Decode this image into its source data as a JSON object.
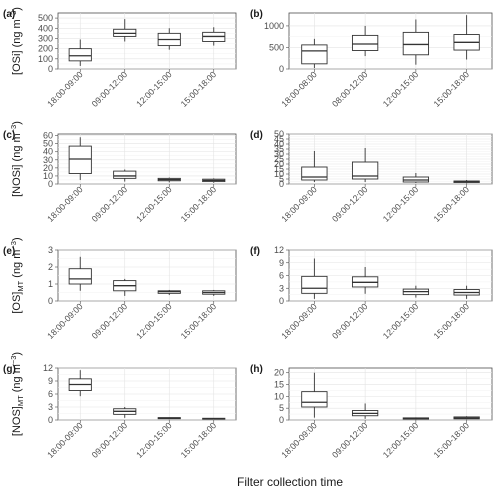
{
  "figure": {
    "xlabel": "Filter collection time"
  },
  "chart_data": [
    {
      "type": "box",
      "panel": "(a)",
      "ylabel_main": "[OSi]",
      "ylabel_sub": "",
      "ylabel_unit": "(ng m",
      "ylabel_exp": "−3",
      "ylim": [
        0,
        550
      ],
      "yticks": [
        0,
        100,
        200,
        300,
        400,
        500
      ],
      "grid": true,
      "categories": [
        "18:00-09:00",
        "09:00-12:00",
        "12:00-15:00",
        "15:00-18:00"
      ],
      "boxes": [
        {
          "min": 30,
          "q1": 80,
          "median": 130,
          "q3": 200,
          "max": 290
        },
        {
          "min": 270,
          "q1": 320,
          "median": 350,
          "q3": 390,
          "max": 490
        },
        {
          "min": 190,
          "q1": 230,
          "median": 290,
          "q3": 350,
          "max": 400
        },
        {
          "min": 230,
          "q1": 270,
          "median": 320,
          "q3": 360,
          "max": 410
        }
      ]
    },
    {
      "type": "box",
      "panel": "(b)",
      "ylabel_main": "",
      "ylabel_sub": "",
      "ylabel_unit": "",
      "ylabel_exp": "",
      "ylim": [
        0,
        1300
      ],
      "yticks": [
        0,
        500,
        1000
      ],
      "grid": true,
      "categories": [
        "18:00-08:00",
        "08:00-12:00",
        "12:00-15:00",
        "15:00-18:00"
      ],
      "boxes": [
        {
          "min": 20,
          "q1": 120,
          "median": 420,
          "q3": 560,
          "max": 700
        },
        {
          "min": 300,
          "q1": 430,
          "median": 580,
          "q3": 780,
          "max": 1000
        },
        {
          "min": 100,
          "q1": 330,
          "median": 570,
          "q3": 850,
          "max": 1150
        },
        {
          "min": 220,
          "q1": 440,
          "median": 620,
          "q3": 800,
          "max": 1250
        }
      ]
    },
    {
      "type": "box",
      "panel": "(c)",
      "ylabel_main": "[NOSi]",
      "ylabel_sub": "",
      "ylabel_unit": "(ng m",
      "ylabel_exp": "−3",
      "ylim": [
        0,
        62
      ],
      "yticks": [
        0,
        10,
        20,
        30,
        40,
        50,
        60
      ],
      "grid": true,
      "categories": [
        "18:00-09:00",
        "09:00-12:00",
        "12:00-15:00",
        "15:00-18:00"
      ],
      "boxes": [
        {
          "min": 5,
          "q1": 13,
          "median": 31,
          "q3": 47,
          "max": 58
        },
        {
          "min": 3,
          "q1": 7,
          "median": 10,
          "q3": 16,
          "max": 18
        },
        {
          "min": 2,
          "q1": 4,
          "median": 5.5,
          "q3": 7,
          "max": 8
        },
        {
          "min": 1.5,
          "q1": 3,
          "median": 4.5,
          "q3": 6,
          "max": 7
        }
      ]
    },
    {
      "type": "box",
      "panel": "(d)",
      "ylabel_main": "",
      "ylabel_sub": "",
      "ylabel_unit": "",
      "ylabel_exp": "",
      "ylim": [
        0,
        50
      ],
      "yticks": [
        0,
        5,
        10,
        15,
        20,
        25,
        30,
        35,
        40,
        45,
        50
      ],
      "grid": true,
      "categories": [
        "18:00-09:00",
        "09:00-12:00",
        "12:00-15:00",
        "15:00-18:00"
      ],
      "boxes": [
        {
          "min": 2,
          "q1": 4,
          "median": 7,
          "q3": 17,
          "max": 33
        },
        {
          "min": 2,
          "q1": 5,
          "median": 8,
          "q3": 22,
          "max": 36
        },
        {
          "min": 1,
          "q1": 2,
          "median": 4,
          "q3": 7,
          "max": 11
        },
        {
          "min": 0.5,
          "q1": 1.5,
          "median": 2.5,
          "q3": 3,
          "max": 4
        }
      ]
    },
    {
      "type": "box",
      "panel": "(e)",
      "ylabel_main": "[OS]",
      "ylabel_sub": "MT",
      "ylabel_unit": "(ng m",
      "ylabel_exp": "−3",
      "ylim": [
        0,
        3
      ],
      "yticks": [
        0,
        1,
        2,
        3
      ],
      "grid": true,
      "categories": [
        "18:00-09:00",
        "09:00-12:00",
        "12:00-15:00",
        "15:00-18:00"
      ],
      "boxes": [
        {
          "min": 0.6,
          "q1": 1.0,
          "median": 1.3,
          "q3": 1.9,
          "max": 2.6
        },
        {
          "min": 0.3,
          "q1": 0.6,
          "median": 0.9,
          "q3": 1.2,
          "max": 1.3
        },
        {
          "min": 0.35,
          "q1": 0.45,
          "median": 0.55,
          "q3": 0.6,
          "max": 0.65
        },
        {
          "min": 0.3,
          "q1": 0.4,
          "median": 0.5,
          "q3": 0.6,
          "max": 0.65
        }
      ]
    },
    {
      "type": "box",
      "panel": "(f)",
      "ylabel_main": "",
      "ylabel_sub": "",
      "ylabel_unit": "",
      "ylabel_exp": "",
      "ylim": [
        0,
        12
      ],
      "yticks": [
        0,
        3,
        6,
        9,
        12
      ],
      "grid": true,
      "categories": [
        "18:00-09:00",
        "09:00-12:00",
        "12:00-15:00",
        "15:00-18:00"
      ],
      "boxes": [
        {
          "min": 0.5,
          "q1": 1.8,
          "median": 3.0,
          "q3": 5.8,
          "max": 10.0
        },
        {
          "min": 1.7,
          "q1": 3.3,
          "median": 4.4,
          "q3": 5.7,
          "max": 8.0
        },
        {
          "min": 0.8,
          "q1": 1.5,
          "median": 2.2,
          "q3": 2.8,
          "max": 3.6
        },
        {
          "min": 0.5,
          "q1": 1.4,
          "median": 2.0,
          "q3": 2.7,
          "max": 3.6
        }
      ]
    },
    {
      "type": "box",
      "panel": "(g)",
      "ylabel_main": "[NOS]",
      "ylabel_sub": "MT",
      "ylabel_unit": "(ng m",
      "ylabel_exp": "−3",
      "ylim": [
        0,
        12
      ],
      "yticks": [
        0,
        3,
        6,
        9,
        12
      ],
      "grid": true,
      "categories": [
        "18:00-09:00",
        "09:00-12:00",
        "12:00-15:00",
        "15:00-18:00"
      ],
      "boxes": [
        {
          "min": 5.5,
          "q1": 6.8,
          "median": 8.2,
          "q3": 9.5,
          "max": 11.5
        },
        {
          "min": 0.5,
          "q1": 1.3,
          "median": 2.0,
          "q3": 2.6,
          "max": 3.0
        },
        {
          "min": 0.15,
          "q1": 0.3,
          "median": 0.45,
          "q3": 0.55,
          "max": 0.6
        },
        {
          "min": 0.1,
          "q1": 0.2,
          "median": 0.3,
          "q3": 0.4,
          "max": 0.45
        }
      ]
    },
    {
      "type": "box",
      "panel": "(h)",
      "ylabel_main": "",
      "ylabel_sub": "",
      "ylabel_unit": "",
      "ylabel_exp": "",
      "ylim": [
        0,
        22
      ],
      "yticks": [
        0,
        5,
        10,
        15,
        20
      ],
      "grid": true,
      "categories": [
        "18:00-09:00",
        "09:00-12:00",
        "12:00-15:00",
        "15:00-18:00"
      ],
      "boxes": [
        {
          "min": 1.0,
          "q1": 5.5,
          "median": 7.5,
          "q3": 12.0,
          "max": 20.0
        },
        {
          "min": 0.5,
          "q1": 1.8,
          "median": 2.8,
          "q3": 4.0,
          "max": 7.0
        },
        {
          "min": 0.1,
          "q1": 0.4,
          "median": 0.7,
          "q3": 0.9,
          "max": 1.1
        },
        {
          "min": 0.2,
          "q1": 0.5,
          "median": 0.9,
          "q3": 1.3,
          "max": 1.6
        }
      ]
    }
  ]
}
